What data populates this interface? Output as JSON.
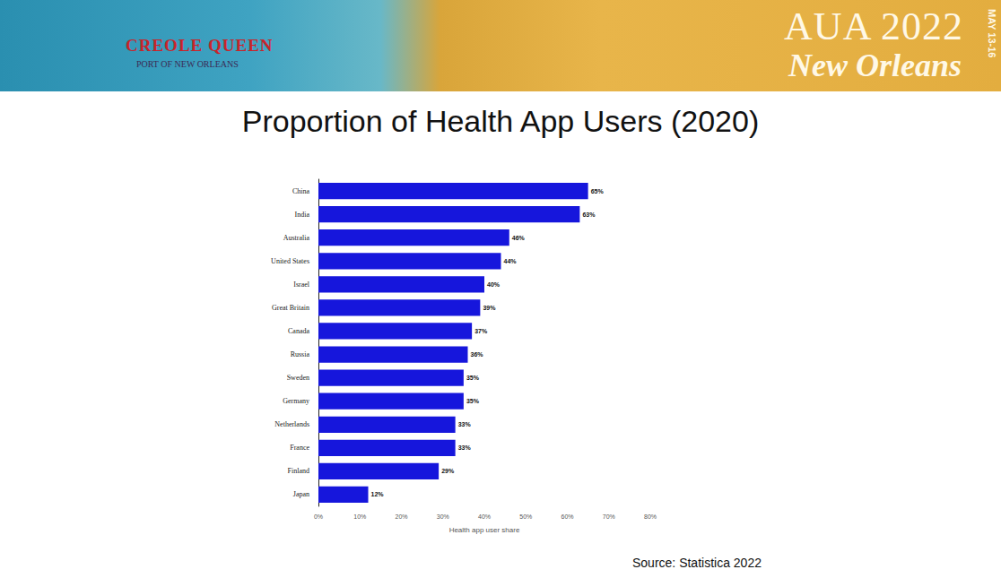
{
  "banner": {
    "left": [
      "CREOLE QUEEN",
      "PORT OF NEW ORLEANS"
    ],
    "right": [
      "AUA 2022",
      "New Orleans",
      "MAY 13-16"
    ]
  },
  "chart_data": {
    "type": "bar",
    "orientation": "horizontal",
    "title": "Proportion of Health App Users (2020)",
    "x_label": "Health app user share",
    "annotations": [
      "Source: Statistica 2022"
    ],
    "categories": [
      "China",
      "India",
      "Australia",
      "United States",
      "Israel",
      "Great Britain",
      "Canada",
      "Russia",
      "Sweden",
      "Germany",
      "Netherlands",
      "France",
      "Finland",
      "Japan"
    ],
    "values": [
      65,
      63,
      46,
      44,
      40,
      39,
      37,
      36,
      35,
      35,
      33,
      33,
      29,
      12
    ],
    "value_labels": [
      "65%",
      "63%",
      "46%",
      "44%",
      "40%",
      "39%",
      "37%",
      "36%",
      "35%",
      "35%",
      "33%",
      "33%",
      "29%",
      "12%"
    ],
    "color": "#1616dc",
    "xlim": [
      0,
      80
    ],
    "xticks": [
      {
        "value": 0,
        "label": "0%"
      },
      {
        "value": 10,
        "label": "10%"
      },
      {
        "value": 20,
        "label": "20%"
      },
      {
        "value": 30,
        "label": "30%"
      },
      {
        "value": 40,
        "label": "40%"
      },
      {
        "value": 50,
        "label": "50%"
      },
      {
        "value": 60,
        "label": "60%"
      },
      {
        "value": 70,
        "label": "70%"
      },
      {
        "value": 80,
        "label": "80%"
      }
    ],
    "data_labels": true,
    "grid": false
  }
}
